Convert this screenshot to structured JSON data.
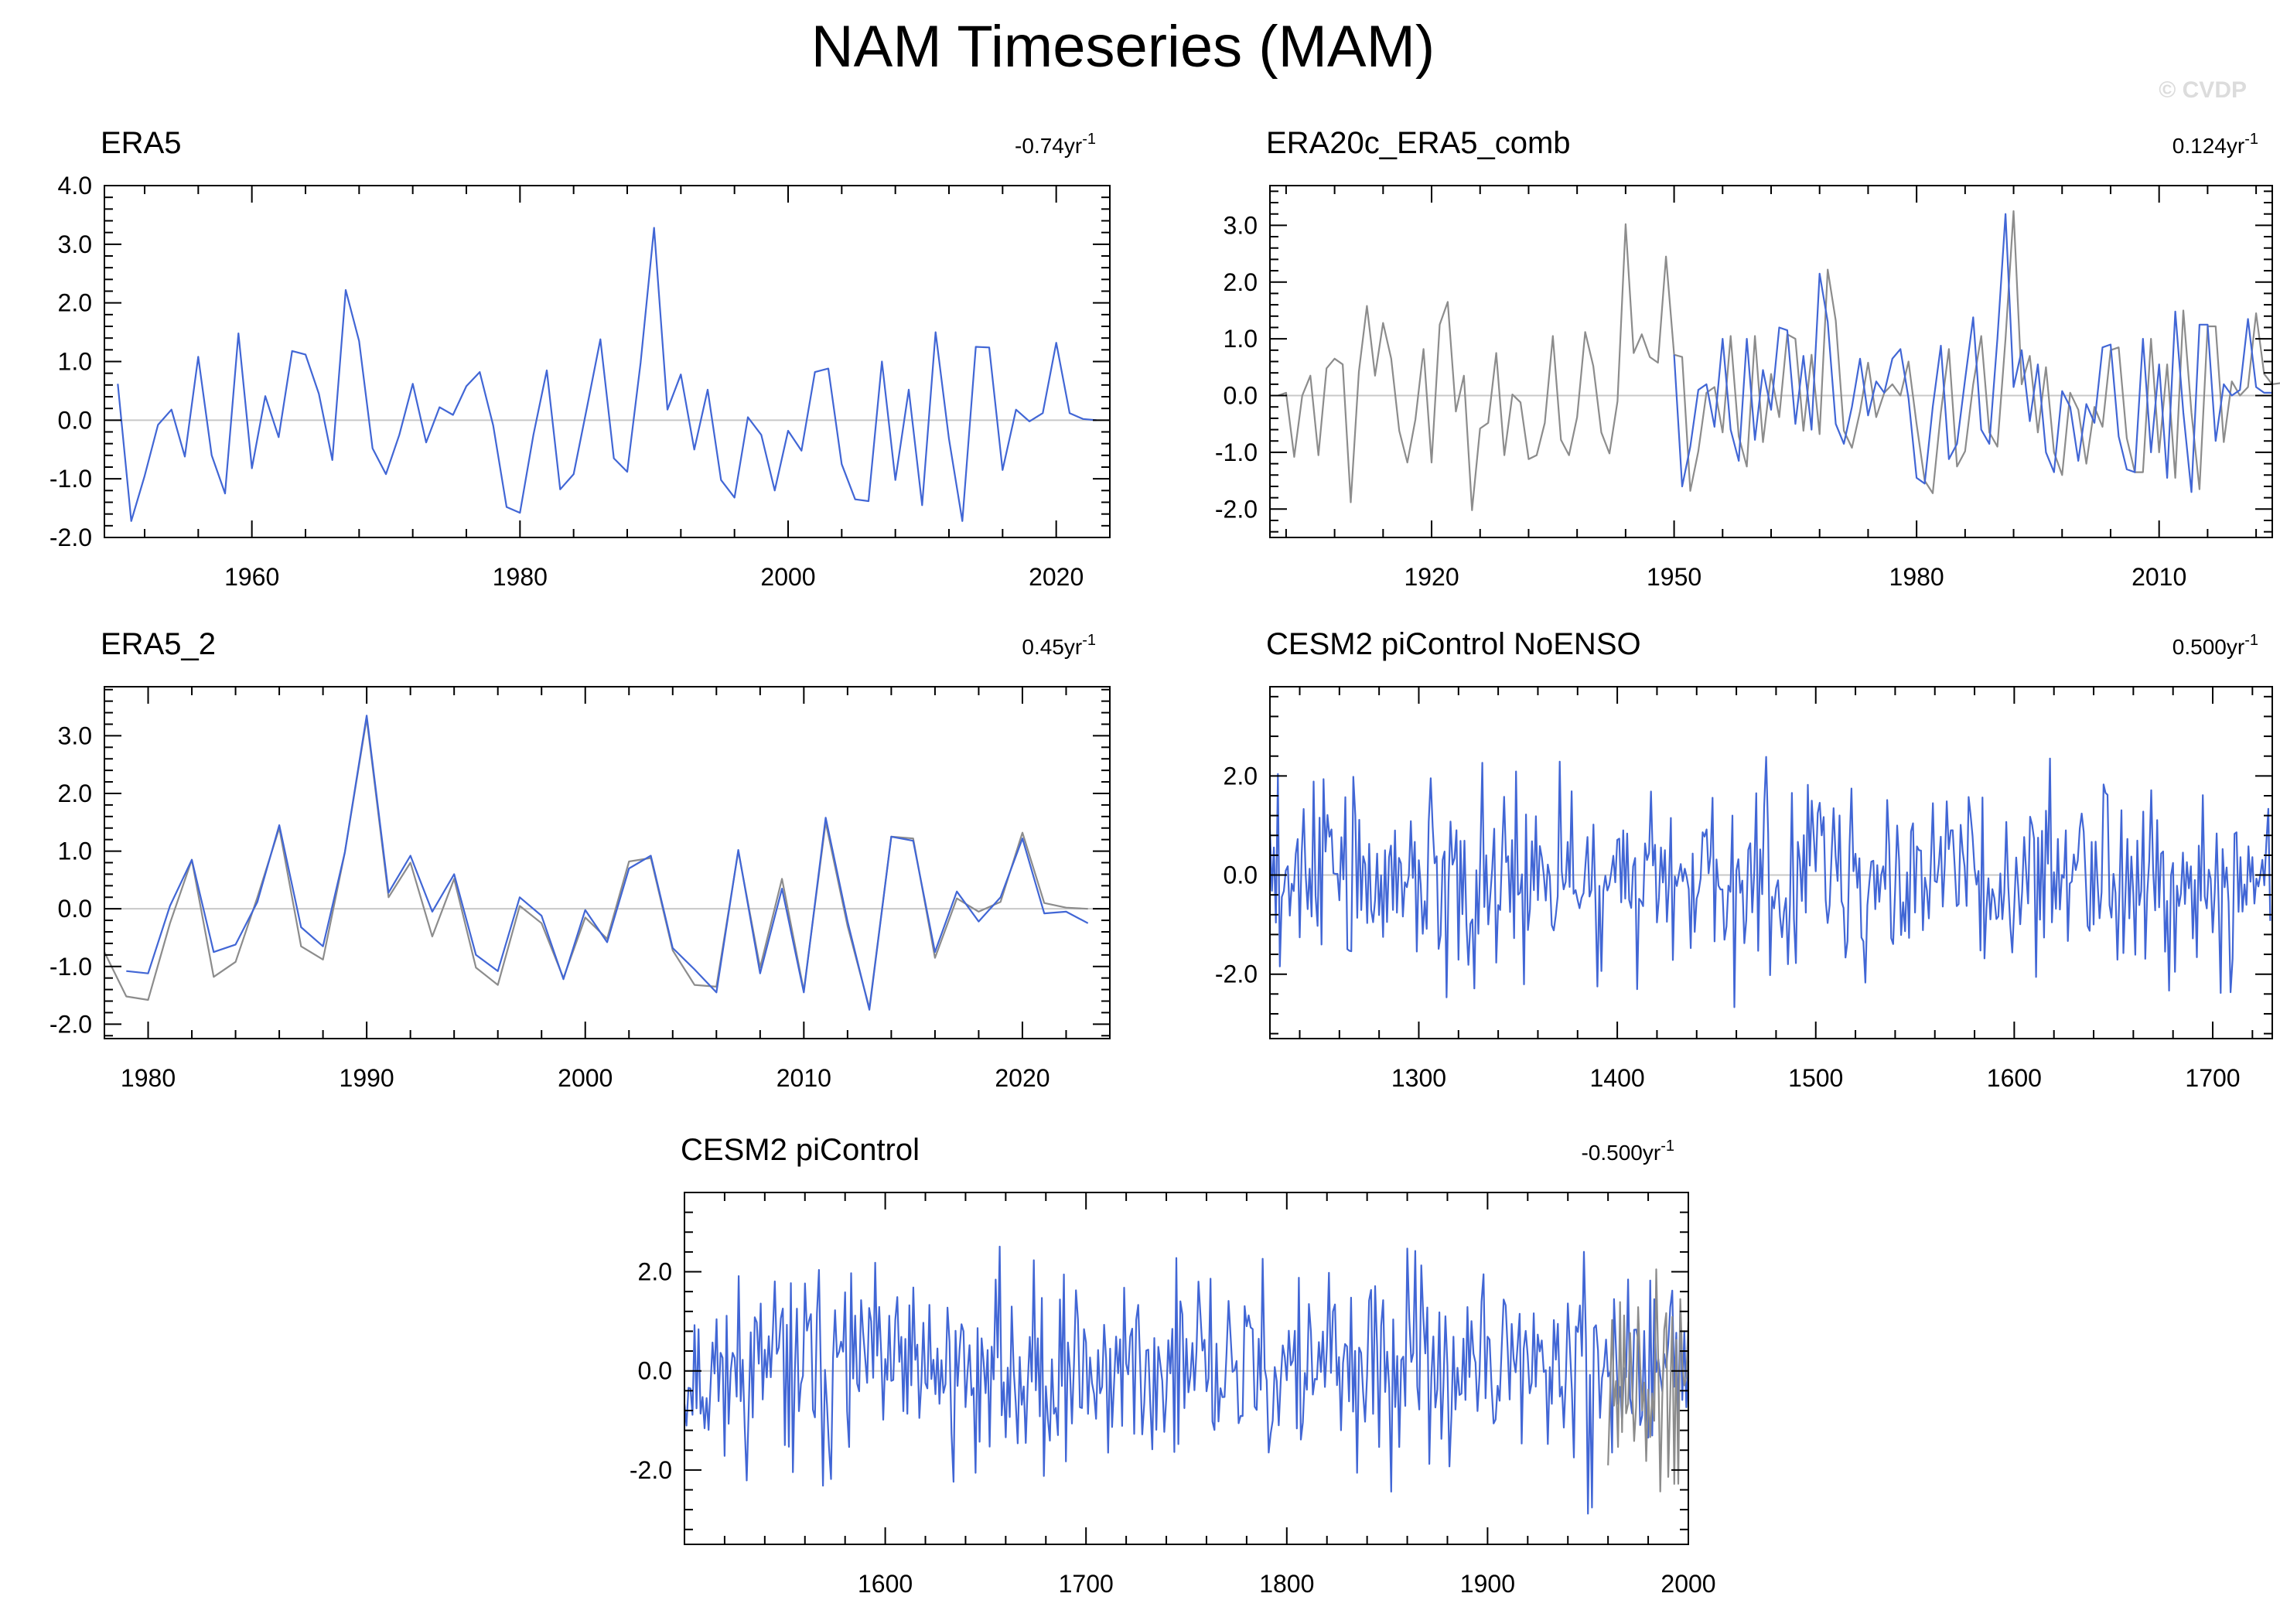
{
  "figure": {
    "title": "NAM Timeseries (MAM)",
    "watermark": "© CVDP",
    "colors": {
      "primary_series": "#4166d5",
      "secondary_series": "#8c8c8c",
      "zero_line": "#c8c8c8",
      "axes": "#000000"
    }
  },
  "chart_data": [
    {
      "type": "line",
      "title": "ERA5",
      "trend_label": "-0.74yr",
      "trend_exponent": "-1",
      "xlim": [
        1949,
        2024
      ],
      "ylim": [
        -2.0,
        4.0
      ],
      "xticks": [
        1960,
        1980,
        2000,
        2020
      ],
      "yticks": [
        -2.0,
        -1.0,
        0.0,
        1.0,
        2.0,
        3.0,
        4.0
      ],
      "ytick_labels": [
        "-2.0",
        "-1.0",
        "0.0",
        "1.0",
        "2.0",
        "3.0",
        "4.0"
      ],
      "series": [
        {
          "x_start": 1950,
          "x_step": 1,
          "values": [
            0.62,
            -1.72,
            -0.95,
            -0.08,
            0.18,
            -0.62,
            1.08,
            -0.6,
            -1.25,
            1.48,
            -0.82,
            0.41,
            -0.29,
            1.18,
            1.12,
            0.45,
            -0.68,
            2.22,
            1.35,
            -0.48,
            -0.92,
            -0.25,
            0.62,
            -0.38,
            0.22,
            0.09,
            0.58,
            0.82,
            -0.09,
            -1.48,
            -1.58,
            -0.25,
            0.85,
            -1.18,
            -0.92,
            0.22,
            1.38,
            -0.65,
            -0.88,
            0.98,
            3.28,
            0.18,
            0.78,
            -0.5,
            0.52,
            -1.02,
            -1.32,
            0.05,
            -0.25,
            -1.2,
            -0.18,
            -0.52,
            0.82,
            0.88,
            -0.75,
            -1.35,
            -1.38,
            1.0,
            -1.02,
            0.52,
            -1.45,
            1.5,
            -0.32,
            -1.72,
            1.25,
            1.24,
            -0.85,
            0.18,
            -0.02,
            0.12,
            1.32,
            0.12,
            0.02,
            0.0
          ]
        }
      ]
    },
    {
      "type": "line",
      "title": "ERA20c_ERA5_comb",
      "trend_label": "0.124yr",
      "trend_exponent": "-1",
      "xlim": [
        1900,
        2024
      ],
      "ylim": [
        -2.5,
        3.7
      ],
      "xticks": [
        1920,
        1950,
        1980,
        2010
      ],
      "yticks": [
        -2.0,
        -1.0,
        0.0,
        1.0,
        2.0,
        3.0
      ],
      "ytick_labels": [
        "-2.0",
        "-1.0",
        "0.0",
        "1.0",
        "2.0",
        "3.0"
      ],
      "series": [
        {
          "x_start": 1901,
          "x_step": 1,
          "values": [
            0.0,
            0.05,
            -1.08,
            0.0,
            0.35,
            -1.05,
            0.48,
            0.65,
            0.55,
            -1.88,
            0.42,
            1.58,
            0.35,
            1.28,
            0.65,
            -0.62,
            -1.18,
            -0.42,
            0.82,
            -1.18,
            1.25,
            1.65,
            -0.28,
            0.35,
            -2.02,
            -0.58,
            -0.48,
            0.75,
            -1.05,
            0.02,
            -0.12,
            -1.12,
            -1.05,
            -0.48,
            1.05,
            -0.78,
            -1.05,
            -0.38,
            1.12,
            0.52,
            -0.65,
            -1.02,
            -0.1,
            3.02,
            0.75,
            1.08,
            0.68,
            0.58,
            2.45,
            0.72,
            0.68,
            -1.68,
            -0.98,
            0.05,
            0.15,
            -0.65,
            1.05,
            -0.72,
            -1.25,
            1.05,
            -0.82,
            0.38,
            -0.38,
            1.08,
            1.0,
            -0.62,
            0.72,
            -0.68,
            2.22,
            1.32,
            -0.62,
            -0.92,
            -0.28,
            0.58,
            -0.38,
            0.05,
            0.2,
            0.0,
            0.6,
            -0.5,
            -1.5,
            -1.72,
            -0.3,
            0.82,
            -1.25,
            -0.98,
            0.2,
            1.05,
            -0.65,
            -0.9,
            1.0,
            3.25,
            0.2,
            0.7,
            -0.65,
            0.5,
            -1.0,
            -1.4,
            0.05,
            -0.25,
            -1.2,
            -0.2,
            -0.55,
            0.8,
            0.85,
            -0.75,
            -1.35,
            -1.35,
            1.0,
            -1.0,
            0.55,
            -1.45,
            1.5,
            -0.3,
            -1.65,
            1.22,
            1.22,
            -0.82,
            0.25,
            0.0,
            0.15,
            1.45,
            0.38,
            0.2,
            0.22
          ]
        },
        {
          "x_start": 1950,
          "x_step": 1,
          "values": [
            0.72,
            -1.6,
            -0.9,
            0.1,
            0.2,
            -0.55,
            1.0,
            -0.6,
            -1.15,
            1.0,
            -0.78,
            0.45,
            -0.25,
            1.2,
            1.15,
            -0.5,
            0.7,
            -0.6,
            2.15,
            1.3,
            -0.5,
            -0.85,
            -0.2,
            0.65,
            -0.35,
            0.25,
            0.05,
            0.65,
            0.82,
            -0.05,
            -1.45,
            -1.55,
            -0.2,
            0.88,
            -1.12,
            -0.85,
            0.28,
            1.38,
            -0.6,
            -0.85,
            1.0,
            3.2,
            0.15,
            0.8,
            -0.45,
            0.55,
            -1.0,
            -1.35,
            0.08,
            -0.2,
            -1.15,
            -0.15,
            -0.48,
            0.85,
            0.9,
            -0.72,
            -1.3,
            -1.35,
            1.0,
            -1.0,
            0.55,
            -1.45,
            1.48,
            -0.3,
            -1.7,
            1.25,
            1.25,
            -0.8,
            0.2,
            0.0,
            0.1,
            1.35,
            0.15,
            0.05,
            0.05
          ]
        }
      ]
    },
    {
      "type": "line",
      "title": "ERA5_2",
      "trend_label": "0.45yr",
      "trend_exponent": "-1",
      "xlim": [
        1978,
        2024
      ],
      "ylim": [
        -2.25,
        3.85
      ],
      "xticks": [
        1980,
        1990,
        2000,
        2010,
        2020
      ],
      "yticks": [
        -2.0,
        -1.0,
        0.0,
        1.0,
        2.0,
        3.0
      ],
      "ytick_labels": [
        "-2.0",
        "-1.0",
        "0.0",
        "1.0",
        "2.0",
        "3.0"
      ],
      "series": [
        {
          "x_start": 1978,
          "x_step": 1,
          "values": [
            -0.75,
            -1.52,
            -1.58,
            -0.25,
            0.85,
            -1.18,
            -0.92,
            0.2,
            1.4,
            -0.65,
            -0.88,
            0.98,
            3.3,
            0.2,
            0.8,
            -0.48,
            0.52,
            -1.02,
            -1.32,
            0.05,
            -0.25,
            -1.2,
            -0.15,
            -0.52,
            0.82,
            0.88,
            -0.72,
            -1.32,
            -1.35,
            1.0,
            -1.02,
            0.52,
            -1.42,
            1.5,
            -0.3,
            -1.72,
            1.25,
            1.22,
            -0.85,
            0.18,
            -0.05,
            0.12,
            1.32,
            0.1,
            0.02,
            0.0
          ]
        },
        {
          "x_start": 1979,
          "x_step": 1,
          "values": [
            -1.08,
            -1.12,
            0.05,
            0.85,
            -0.75,
            -0.62,
            0.12,
            1.45,
            -0.32,
            -0.65,
            0.98,
            3.35,
            0.28,
            0.92,
            -0.05,
            0.6,
            -0.8,
            -1.08,
            0.2,
            -0.12,
            -1.22,
            -0.02,
            -0.58,
            0.7,
            0.92,
            -0.68,
            -1.05,
            -1.45,
            1.02,
            -1.12,
            0.35,
            -1.45,
            1.58,
            -0.22,
            -1.75,
            1.25,
            1.18,
            -0.75,
            0.3,
            -0.22,
            0.2,
            1.22,
            -0.08,
            -0.05,
            -0.25
          ]
        }
      ]
    },
    {
      "type": "line",
      "title": "CESM2 piControl NoENSO",
      "trend_label": "0.500yr",
      "trend_exponent": "-1",
      "xlim": [
        1225,
        1730
      ],
      "ylim": [
        -3.3,
        3.8
      ],
      "xticks": [
        1300,
        1400,
        1500,
        1600,
        1700
      ],
      "yticks": [
        -2.0,
        0.0,
        2.0
      ],
      "ytick_labels": [
        "-2.0",
        "0.0",
        "2.0"
      ],
      "series": [
        {
          "x_start": 1225,
          "x_step": 1,
          "generated": true,
          "seed": 3,
          "count": 505,
          "amplitude": 0.95
        }
      ]
    },
    {
      "type": "line",
      "title": "CESM2 piControl",
      "trend_label": "-0.500yr",
      "trend_exponent": "-1",
      "xlim": [
        1500,
        2000
      ],
      "ylim": [
        -3.5,
        3.6
      ],
      "xticks": [
        1600,
        1700,
        1800,
        1900,
        2000
      ],
      "yticks": [
        -2.0,
        0.0,
        2.0
      ],
      "ytick_labels": [
        "-2.0",
        "0.0",
        "2.0"
      ],
      "series": [
        {
          "x_start": 1500,
          "x_step": 1,
          "generated": true,
          "seed": 11,
          "count": 501,
          "amplitude": 0.95
        },
        {
          "x_start": 1960,
          "x_step": 1,
          "generated": true,
          "seed": 21,
          "count": 41,
          "amplitude": 1.1
        }
      ]
    }
  ]
}
